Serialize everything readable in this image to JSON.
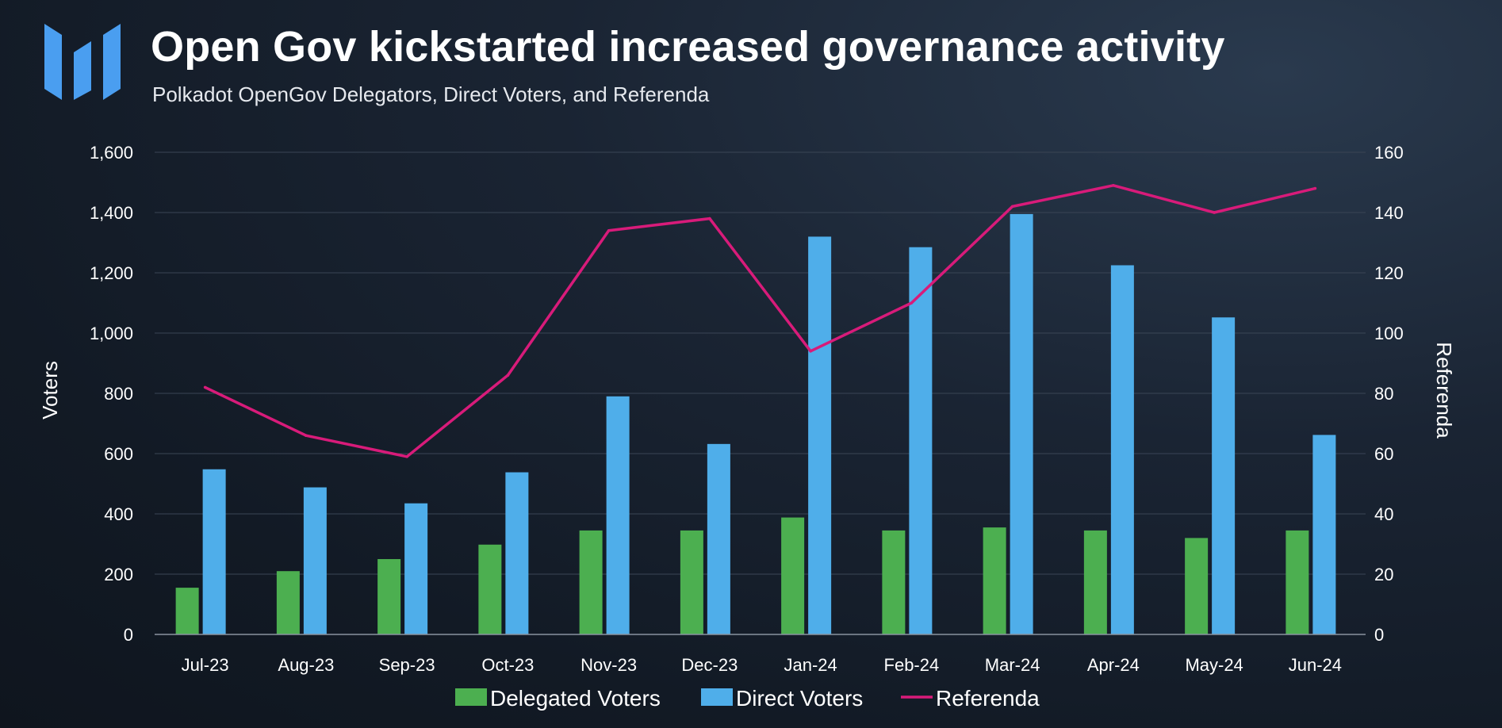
{
  "header": {
    "title": "Open Gov kickstarted increased governance activity",
    "subtitle": "Polkadot OpenGov Delegators, Direct Voters, and Referenda"
  },
  "colors": {
    "delegated": "#4caf50",
    "direct": "#4faeea",
    "referenda": "#d81b7a",
    "grid": "#3a4555",
    "logo": "#4a9ef0"
  },
  "chart_data": {
    "type": "bar",
    "categories": [
      "Jul-23",
      "Aug-23",
      "Sep-23",
      "Oct-23",
      "Nov-23",
      "Dec-23",
      "Jan-24",
      "Feb-24",
      "Mar-24",
      "Apr-24",
      "May-24",
      "Jun-24"
    ],
    "series": [
      {
        "name": "Delegated Voters",
        "type": "bar",
        "axis": "left",
        "values": [
          155,
          210,
          250,
          298,
          345,
          345,
          388,
          345,
          355,
          345,
          320,
          345
        ]
      },
      {
        "name": "Direct Voters",
        "type": "bar",
        "axis": "left",
        "values": [
          548,
          488,
          435,
          538,
          790,
          632,
          1320,
          1285,
          1395,
          1225,
          1052,
          662
        ]
      },
      {
        "name": "Referenda",
        "type": "line",
        "axis": "right",
        "values": [
          82,
          66,
          59,
          86,
          134,
          138,
          94,
          110,
          142,
          149,
          140,
          148
        ]
      }
    ],
    "ylabel": "Voters",
    "y2label": "Referenda",
    "ylim": [
      0,
      1600
    ],
    "y2lim": [
      0,
      160
    ],
    "yticks": [
      "0",
      "200",
      "400",
      "600",
      "800",
      "1,000",
      "1,200",
      "1,400",
      "1,600"
    ],
    "y2ticks": [
      "0",
      "20",
      "40",
      "60",
      "80",
      "100",
      "120",
      "140",
      "160"
    ],
    "grid": true,
    "legend": "bottom-center"
  }
}
